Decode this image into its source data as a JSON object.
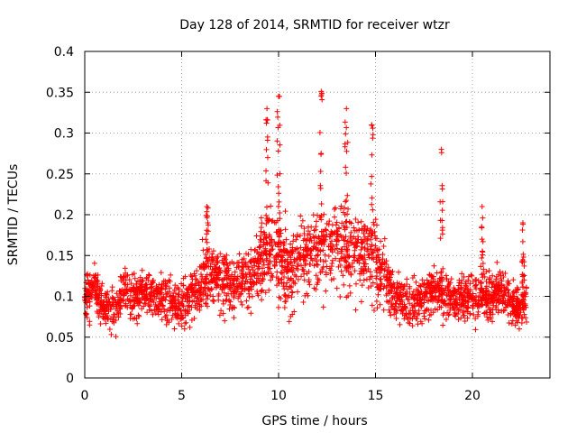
{
  "chart_data": {
    "type": "scatter",
    "title": "Day 128 of 2014, SRMTID for receiver wtzr",
    "xlabel": "GPS time / hours",
    "ylabel": "SRMTID / TECUs",
    "xlim": [
      0,
      24
    ],
    "ylim": [
      0,
      0.4
    ],
    "x_ticks": [
      "0",
      "5",
      "10",
      "15",
      "20"
    ],
    "y_ticks": [
      "0",
      "0.05",
      "0.1",
      "0.15",
      "0.2",
      "0.25",
      "0.3",
      "0.35",
      "0.4"
    ],
    "grid": true,
    "marker": "+",
    "color": "#ff0000",
    "series": [
      {
        "name": "SRMTID",
        "approximate_time_profile": [
          {
            "x": 0.0,
            "y": 0.1
          },
          {
            "x": 0.5,
            "y": 0.11
          },
          {
            "x": 1.0,
            "y": 0.09
          },
          {
            "x": 1.5,
            "y": 0.08
          },
          {
            "x": 2.0,
            "y": 0.11
          },
          {
            "x": 2.5,
            "y": 0.1
          },
          {
            "x": 3.0,
            "y": 0.11
          },
          {
            "x": 3.5,
            "y": 0.1
          },
          {
            "x": 4.0,
            "y": 0.1
          },
          {
            "x": 4.5,
            "y": 0.09
          },
          {
            "x": 5.0,
            "y": 0.09
          },
          {
            "x": 5.5,
            "y": 0.1
          },
          {
            "x": 6.0,
            "y": 0.12
          },
          {
            "x": 6.5,
            "y": 0.13
          },
          {
            "x": 7.0,
            "y": 0.12
          },
          {
            "x": 7.5,
            "y": 0.11
          },
          {
            "x": 8.0,
            "y": 0.12
          },
          {
            "x": 8.5,
            "y": 0.12
          },
          {
            "x": 9.0,
            "y": 0.14
          },
          {
            "x": 9.5,
            "y": 0.16
          },
          {
            "x": 10.0,
            "y": 0.15
          },
          {
            "x": 10.5,
            "y": 0.13
          },
          {
            "x": 11.0,
            "y": 0.14
          },
          {
            "x": 11.5,
            "y": 0.15
          },
          {
            "x": 12.0,
            "y": 0.16
          },
          {
            "x": 12.5,
            "y": 0.16
          },
          {
            "x": 13.0,
            "y": 0.16
          },
          {
            "x": 13.5,
            "y": 0.15
          },
          {
            "x": 14.0,
            "y": 0.16
          },
          {
            "x": 14.5,
            "y": 0.15
          },
          {
            "x": 15.0,
            "y": 0.14
          },
          {
            "x": 15.5,
            "y": 0.12
          },
          {
            "x": 16.0,
            "y": 0.1
          },
          {
            "x": 16.5,
            "y": 0.09
          },
          {
            "x": 17.0,
            "y": 0.09
          },
          {
            "x": 17.5,
            "y": 0.1
          },
          {
            "x": 18.0,
            "y": 0.11
          },
          {
            "x": 18.5,
            "y": 0.1
          },
          {
            "x": 19.0,
            "y": 0.1
          },
          {
            "x": 19.5,
            "y": 0.1
          },
          {
            "x": 20.0,
            "y": 0.1
          },
          {
            "x": 20.5,
            "y": 0.1
          },
          {
            "x": 21.0,
            "y": 0.1
          },
          {
            "x": 21.5,
            "y": 0.11
          },
          {
            "x": 22.0,
            "y": 0.09
          },
          {
            "x": 22.5,
            "y": 0.09
          },
          {
            "x": 22.8,
            "y": 0.1
          }
        ],
        "x_extent": [
          0.0,
          22.8
        ],
        "y_extent": [
          0.028,
          0.351
        ],
        "notable_peaks": [
          {
            "x": 9.4,
            "y": 0.33
          },
          {
            "x": 10.0,
            "y": 0.345
          },
          {
            "x": 12.2,
            "y": 0.351
          },
          {
            "x": 13.5,
            "y": 0.33
          },
          {
            "x": 14.8,
            "y": 0.31
          },
          {
            "x": 18.4,
            "y": 0.28
          },
          {
            "x": 20.5,
            "y": 0.21
          },
          {
            "x": 6.3,
            "y": 0.21
          },
          {
            "x": 22.6,
            "y": 0.19
          }
        ]
      }
    ]
  }
}
